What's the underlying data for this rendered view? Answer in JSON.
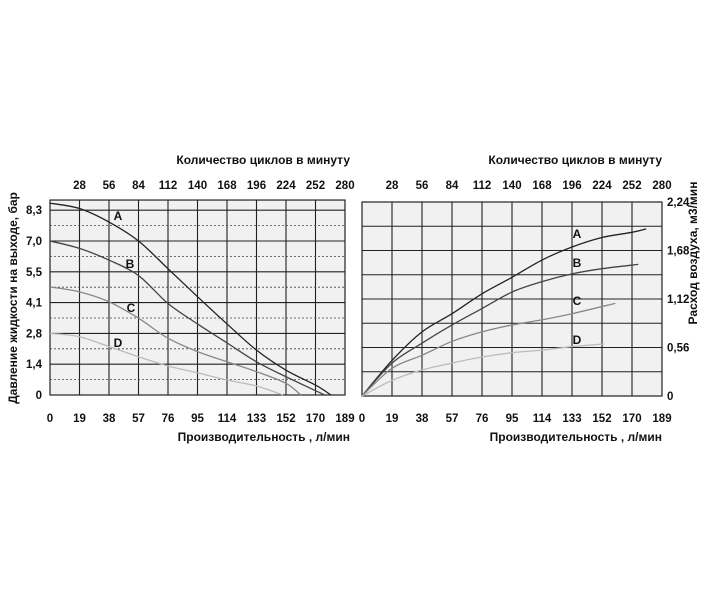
{
  "chart_data": [
    {
      "type": "line",
      "top_axis_label": "Количество циклов в минуту",
      "top_ticks": [
        "28",
        "56",
        "84",
        "112",
        "140",
        "168",
        "196",
        "224",
        "252",
        "280"
      ],
      "xlabel": "Производительность , л/мин",
      "ylabel": "Давление жидкости на выходе, бар",
      "x_ticks": [
        "0",
        "19",
        "38",
        "57",
        "76",
        "95",
        "114",
        "133",
        "152",
        "170",
        "189"
      ],
      "y_ticks": [
        "0",
        "1,4",
        "2,8",
        "4,1",
        "5,5",
        "7,0",
        "8,3"
      ],
      "x_tick_values": [
        0,
        19,
        38,
        57,
        76,
        95,
        114,
        133,
        152,
        170,
        189
      ],
      "y_tick_values": [
        0,
        1.4,
        2.8,
        4.1,
        5.5,
        7.0,
        8.3
      ],
      "grid": true,
      "background": "#f1f1f1",
      "series": [
        {
          "name": "A",
          "color": "#222222",
          "x": [
            0,
            19,
            38,
            57,
            76,
            95,
            114,
            133,
            152,
            170,
            180
          ],
          "y": [
            8.6,
            8.37,
            7.8,
            7.0,
            5.65,
            4.37,
            3.2,
            2.04,
            1.13,
            0.45,
            0
          ]
        },
        {
          "name": "B",
          "color": "#444444",
          "x": [
            0,
            19,
            38,
            57,
            76,
            95,
            114,
            133,
            152,
            176
          ],
          "y": [
            7.0,
            6.64,
            6.07,
            5.33,
            4.06,
            3.2,
            2.37,
            1.51,
            0.83,
            0
          ]
        },
        {
          "name": "C",
          "color": "#888888",
          "x": [
            0,
            19,
            38,
            57,
            76,
            95,
            114,
            133,
            152,
            161
          ],
          "y": [
            4.81,
            4.59,
            4.14,
            3.44,
            2.58,
            1.97,
            1.51,
            1.06,
            0.53,
            0
          ]
        },
        {
          "name": "D",
          "color": "#bbbbbb",
          "x": [
            0,
            19,
            38,
            57,
            76,
            95,
            114,
            133,
            150
          ],
          "y": [
            2.8,
            2.65,
            2.2,
            1.74,
            1.32,
            1.01,
            0.68,
            0.41,
            0
          ]
        }
      ]
    },
    {
      "type": "line",
      "top_axis_label": "Количество циклов в минуту",
      "top_ticks": [
        "28",
        "56",
        "84",
        "112",
        "140",
        "168",
        "196",
        "224",
        "252",
        "280"
      ],
      "xlabel": "Производительность , л/мин",
      "ylabel": "Расход воздуха, м3/мин",
      "x_ticks": [
        "0",
        "19",
        "38",
        "57",
        "76",
        "95",
        "114",
        "133",
        "152",
        "170",
        "189"
      ],
      "y_ticks": [
        "0",
        "0,56",
        "1,12",
        "1,68",
        "2,24"
      ],
      "x_tick_values": [
        0,
        19,
        38,
        57,
        76,
        95,
        114,
        133,
        152,
        170,
        189
      ],
      "ylim": [
        0,
        2.24
      ],
      "grid": true,
      "background": "#f1f1f1",
      "series": [
        {
          "name": "A",
          "color": "#222222",
          "x": [
            0,
            19,
            38,
            57,
            76,
            95,
            114,
            133,
            152,
            170,
            179
          ],
          "y": [
            0,
            0.41,
            0.74,
            0.95,
            1.18,
            1.37,
            1.57,
            1.72,
            1.83,
            1.89,
            1.93
          ]
        },
        {
          "name": "B",
          "color": "#444444",
          "x": [
            0,
            19,
            38,
            57,
            76,
            95,
            114,
            133,
            152,
            174
          ],
          "y": [
            0,
            0.38,
            0.61,
            0.82,
            1.01,
            1.2,
            1.32,
            1.41,
            1.47,
            1.52
          ]
        },
        {
          "name": "C",
          "color": "#888888",
          "x": [
            0,
            19,
            38,
            57,
            76,
            95,
            114,
            133,
            160
          ],
          "y": [
            0,
            0.32,
            0.47,
            0.63,
            0.74,
            0.82,
            0.88,
            0.95,
            1.07
          ]
        },
        {
          "name": "D",
          "color": "#bbbbbb",
          "x": [
            0,
            19,
            38,
            57,
            76,
            95,
            114,
            133,
            153
          ],
          "y": [
            0,
            0.18,
            0.3,
            0.38,
            0.45,
            0.5,
            0.53,
            0.57,
            0.6
          ]
        }
      ]
    }
  ]
}
